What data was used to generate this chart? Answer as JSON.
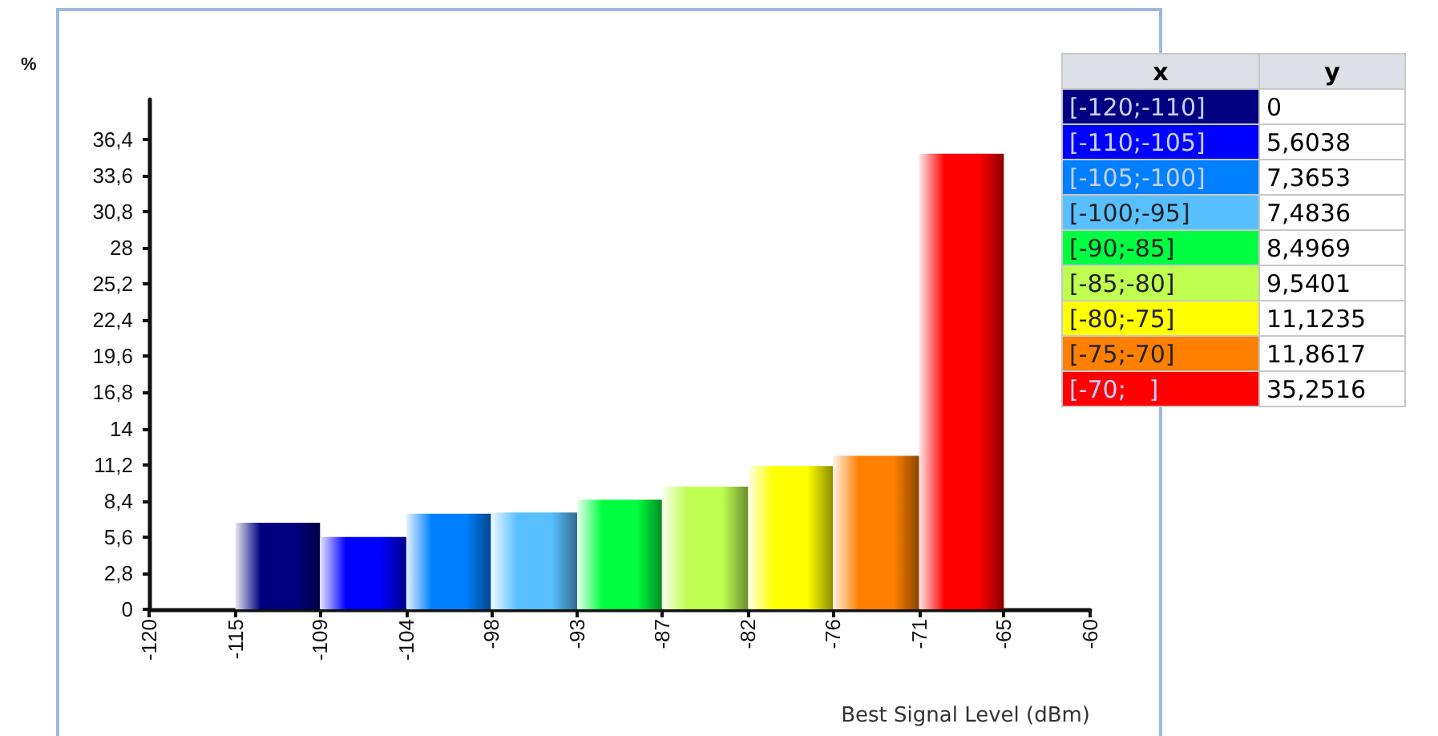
{
  "chart_data": {
    "type": "histogram",
    "ylabel": "%",
    "xlabel": "Best Signal Level (dBm)",
    "bins": [
      -114.5,
      -109.1,
      -103.6,
      -98.2,
      -92.7,
      -87.3,
      -81.8,
      -76.4,
      -70.9,
      -65.5
    ],
    "values": [
      6.7,
      5.6,
      7.4,
      7.5,
      8.5,
      9.5,
      11.1,
      11.9,
      35.3
    ],
    "colors": [
      "#000080",
      "#0000ff",
      "#0080ff",
      "#59c0ff",
      "#00ff40",
      "#bfff50",
      "#ffff00",
      "#ff8000",
      "#ff0000"
    ],
    "xlim": [
      -120,
      -60
    ],
    "xticks": [
      -120,
      {
        "value": -114.5,
        "label": "-115"
      },
      {
        "value": -109.1,
        "label": "-109"
      },
      {
        "value": -103.6,
        "label": "-104"
      },
      {
        "value": -98.2,
        "label": "-98"
      },
      {
        "value": -92.7,
        "label": "-93"
      },
      {
        "value": -87.3,
        "label": "-87"
      },
      {
        "value": -81.8,
        "label": "-82"
      },
      {
        "value": -76.4,
        "label": "-76"
      },
      {
        "value": -70.9,
        "label": "-71"
      },
      {
        "value": -65.5,
        "label": "-65"
      },
      -60
    ],
    "ylim": [
      0,
      39.5
    ],
    "yticks": [
      0,
      {
        "value": 2.8,
        "label": "2,8"
      },
      {
        "value": 5.6,
        "label": "5,6"
      },
      {
        "value": 8.4,
        "label": "8,4"
      },
      {
        "value": 11.2,
        "label": "11,2"
      },
      14,
      {
        "value": 16.8,
        "label": "16,8"
      },
      {
        "value": 19.6,
        "label": "19,6"
      },
      {
        "value": 22.4,
        "label": "22,4"
      },
      {
        "value": 25.2,
        "label": "25,2"
      },
      28,
      {
        "value": 30.8,
        "label": "30,8"
      },
      {
        "value": 33.6,
        "label": "33,6"
      },
      {
        "value": 36.4,
        "label": "36,4"
      }
    ],
    "grid": false,
    "annotations": [
      "x",
      "y",
      "[-120;-110]",
      "0",
      "[-110;-105]",
      "5,6038",
      "[-105;-100]",
      "7,3653",
      "[-100;-95]",
      "7,4836",
      "[-90;-85]",
      "8,4969",
      "[-85;-80]",
      "9,5401",
      "[-80;-75]",
      "11,1235",
      "[-75;-70]",
      "11,8617",
      "[-70;   ]",
      "35,2516"
    ]
  }
}
